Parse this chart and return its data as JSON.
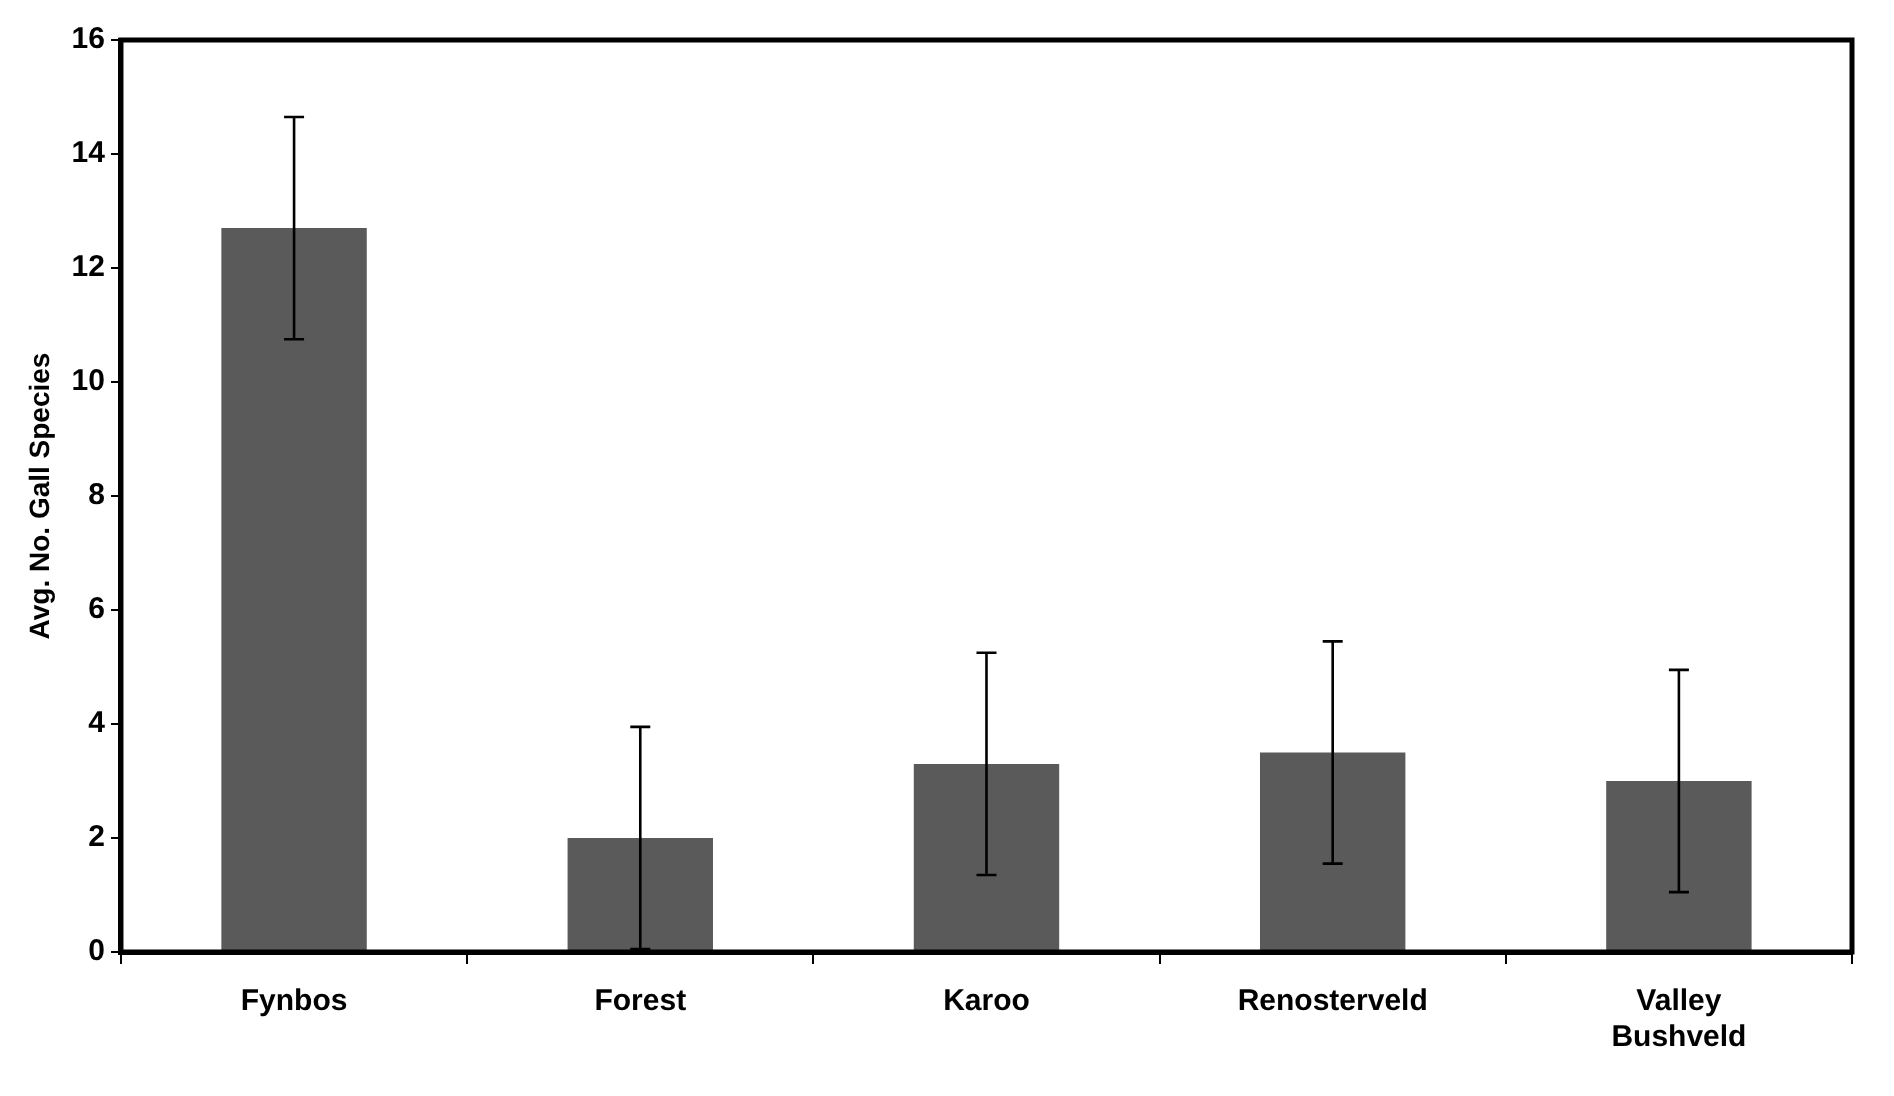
{
  "chart_data": {
    "type": "bar",
    "ylabel": "Avg. No. Gall Species",
    "categories": [
      "Fynbos",
      "Forest",
      "Karoo",
      "Renosterveld",
      "Valley Bushveld"
    ],
    "values": [
      12.7,
      2.0,
      3.3,
      3.5,
      3.0
    ],
    "errors": [
      1.95,
      1.95,
      1.95,
      1.95,
      1.95
    ],
    "color": "#5a5a5a",
    "ylim": [
      0,
      16
    ],
    "yticks": [
      0,
      2,
      4,
      6,
      8,
      10,
      12,
      14,
      16
    ],
    "grid": false,
    "legend": false
  }
}
